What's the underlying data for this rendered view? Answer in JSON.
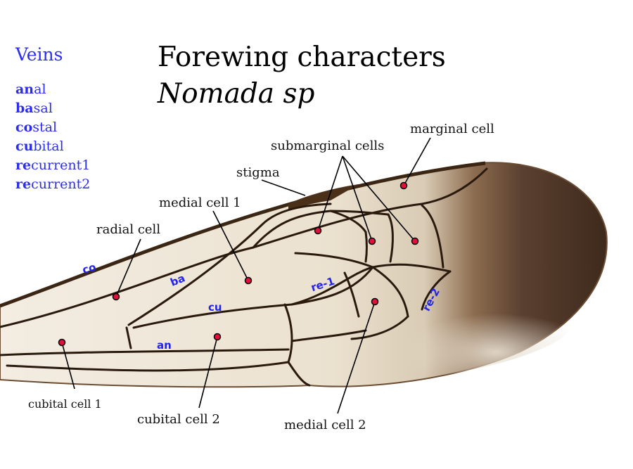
{
  "title": {
    "main": "Forewing characters",
    "subtitle": "Nomada sp"
  },
  "legend": {
    "title": "Veins",
    "items": [
      {
        "bold": "an",
        "rest": "al"
      },
      {
        "bold": "ba",
        "rest": "sal"
      },
      {
        "bold": "co",
        "rest": "stal"
      },
      {
        "bold": "cu",
        "rest": "bital"
      },
      {
        "bold": "re",
        "rest": "current1"
      },
      {
        "bold": "re",
        "rest": "current2"
      }
    ]
  },
  "callouts": {
    "marginal_cell": "marginal cell",
    "submarginal_cells": "submarginal cells",
    "stigma": "stigma",
    "medial_cell_1": "medial cell 1",
    "radial_cell": "radial cell",
    "cubital_cell_1": "cubital cell 1",
    "cubital_cell_2": "cubital cell 2",
    "medial_cell_2": "medial cell 2"
  },
  "vein_tags": {
    "co": "co",
    "ba": "ba",
    "cu": "cu",
    "an": "an",
    "re1": "re-1",
    "re2": "re-2"
  },
  "colors": {
    "marker": "#e0103a",
    "vein_tag": "#2424e8",
    "legend": "#2d2df0",
    "membrane": "#efe6d4",
    "membrane_dark": "#4a3220",
    "vein": "#2a1a0e"
  }
}
